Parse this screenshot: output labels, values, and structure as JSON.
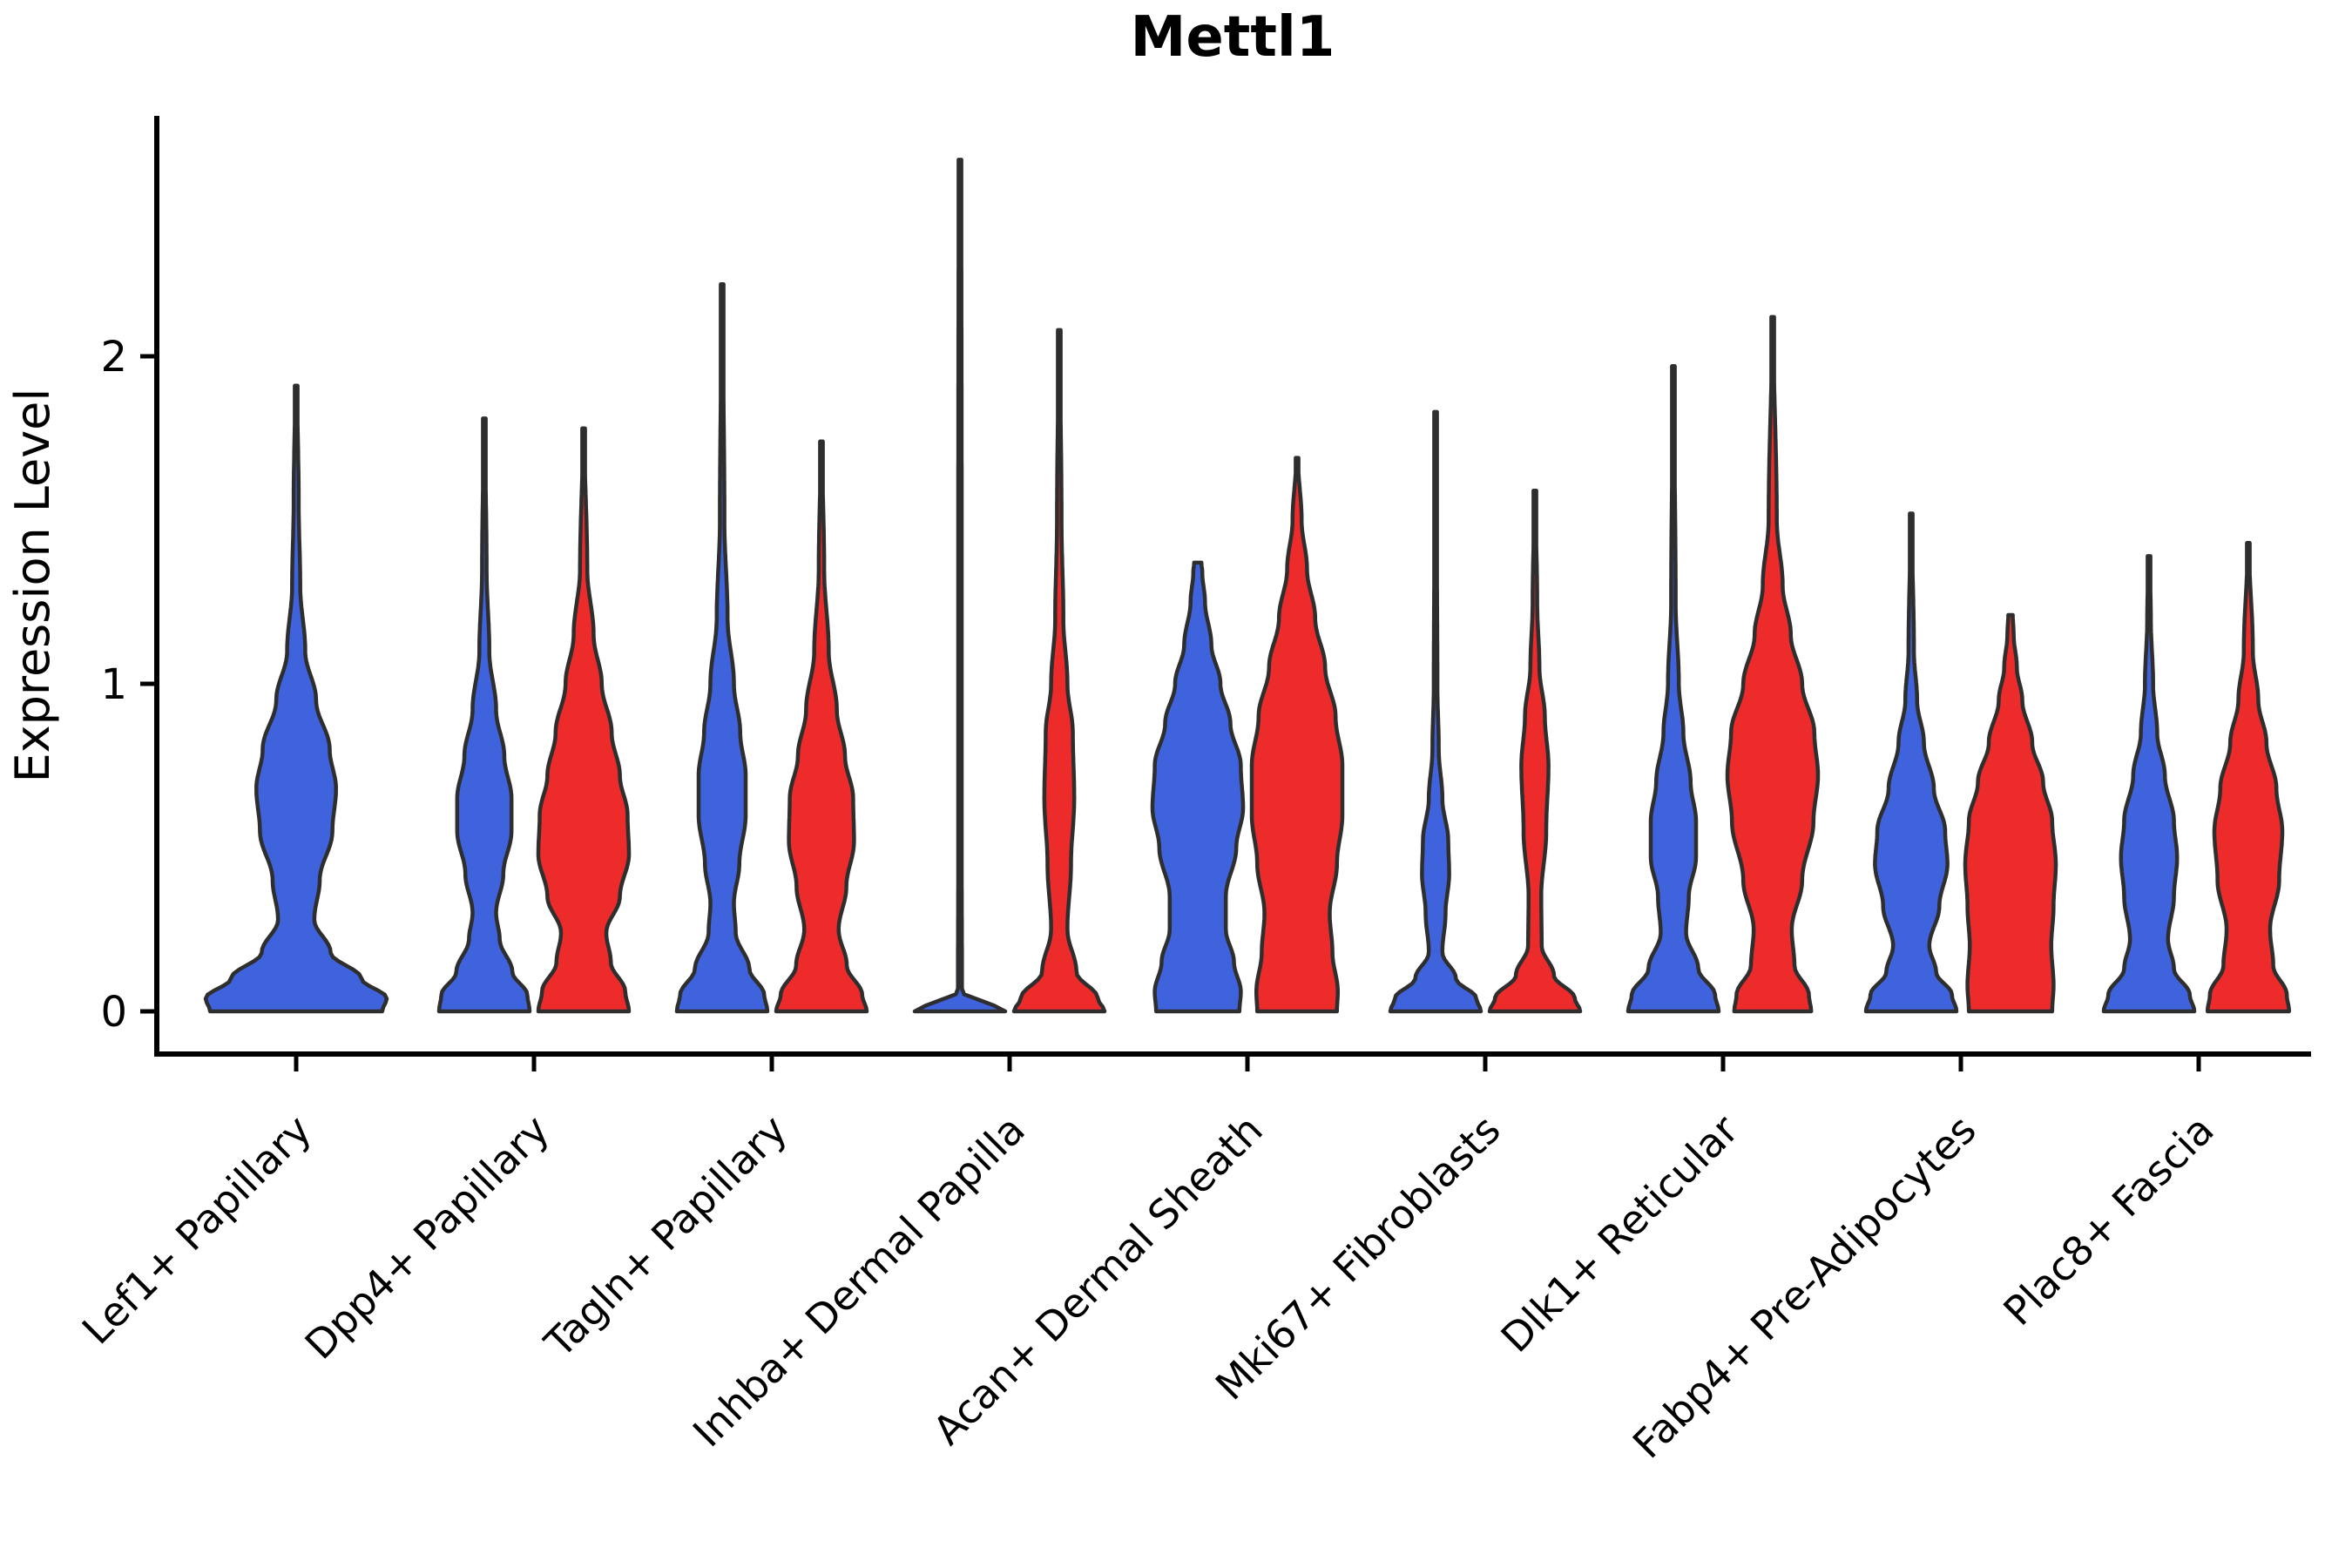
{
  "title": "Mettl1",
  "chart_data": {
    "type": "violin",
    "title": "Mettl1",
    "xlabel": "",
    "ylabel": "Expression Level",
    "ylim": [
      -0.13,
      2.73
    ],
    "yticks": [
      0,
      1,
      2
    ],
    "grid": false,
    "legend": "none",
    "categories": [
      "Lef1+ Papillary",
      "Dpp4+ Papillary",
      "Tagln+ Papillary",
      "Inhba+ Dermal Papilla",
      "Acan+ Dermal Sheath",
      "Mki67+ Fibroblasts",
      "Dlk1+ Reticular",
      "Fabp4+ Pre-Adipocytes",
      "Plac8+ Fascia"
    ],
    "series": [
      {
        "name": "blue",
        "color": "#3E63DC"
      },
      {
        "name": "red",
        "color": "#EE2B2B"
      }
    ],
    "outline_color": "#2E2E2E",
    "violins": [
      {
        "category_index": 0,
        "series": "blue",
        "solo": true,
        "max": 1.91,
        "profile": [
          [
            0,
            0.95
          ],
          [
            0.04,
            1.0
          ],
          [
            0.1,
            0.72
          ],
          [
            0.18,
            0.38
          ],
          [
            0.28,
            0.2
          ],
          [
            0.4,
            0.26
          ],
          [
            0.55,
            0.4
          ],
          [
            0.68,
            0.44
          ],
          [
            0.8,
            0.37
          ],
          [
            0.95,
            0.22
          ],
          [
            1.1,
            0.1
          ],
          [
            1.3,
            0.045
          ],
          [
            1.55,
            0.028
          ],
          [
            1.91,
            0.012
          ]
        ]
      },
      {
        "category_index": 1,
        "series": "blue",
        "solo": false,
        "max": 1.81,
        "profile": [
          [
            0,
            1.0
          ],
          [
            0.05,
            0.95
          ],
          [
            0.12,
            0.62
          ],
          [
            0.22,
            0.34
          ],
          [
            0.3,
            0.26
          ],
          [
            0.42,
            0.42
          ],
          [
            0.55,
            0.6
          ],
          [
            0.65,
            0.6
          ],
          [
            0.78,
            0.44
          ],
          [
            0.92,
            0.26
          ],
          [
            1.1,
            0.11
          ],
          [
            1.35,
            0.05
          ],
          [
            1.81,
            0.015
          ]
        ]
      },
      {
        "category_index": 1,
        "series": "red",
        "solo": false,
        "max": 1.78,
        "profile": [
          [
            0,
            1.0
          ],
          [
            0.06,
            0.92
          ],
          [
            0.15,
            0.6
          ],
          [
            0.24,
            0.5
          ],
          [
            0.35,
            0.8
          ],
          [
            0.48,
            1.0
          ],
          [
            0.6,
            0.97
          ],
          [
            0.72,
            0.8
          ],
          [
            0.85,
            0.62
          ],
          [
            1.0,
            0.4
          ],
          [
            1.15,
            0.22
          ],
          [
            1.35,
            0.08
          ],
          [
            1.78,
            0.015
          ]
        ]
      },
      {
        "category_index": 2,
        "series": "blue",
        "solo": false,
        "max": 2.22,
        "profile": [
          [
            0,
            1.0
          ],
          [
            0.05,
            0.93
          ],
          [
            0.13,
            0.6
          ],
          [
            0.24,
            0.3
          ],
          [
            0.33,
            0.26
          ],
          [
            0.45,
            0.38
          ],
          [
            0.6,
            0.52
          ],
          [
            0.72,
            0.52
          ],
          [
            0.85,
            0.4
          ],
          [
            1.0,
            0.26
          ],
          [
            1.2,
            0.12
          ],
          [
            1.5,
            0.05
          ],
          [
            2.22,
            0.012
          ]
        ]
      },
      {
        "category_index": 2,
        "series": "red",
        "solo": false,
        "max": 1.74,
        "profile": [
          [
            0,
            1.0
          ],
          [
            0.05,
            0.9
          ],
          [
            0.14,
            0.56
          ],
          [
            0.25,
            0.38
          ],
          [
            0.38,
            0.55
          ],
          [
            0.52,
            0.72
          ],
          [
            0.65,
            0.7
          ],
          [
            0.78,
            0.52
          ],
          [
            0.92,
            0.34
          ],
          [
            1.1,
            0.16
          ],
          [
            1.35,
            0.06
          ],
          [
            1.74,
            0.015
          ]
        ]
      },
      {
        "category_index": 3,
        "series": "blue",
        "solo": false,
        "max": 2.6,
        "profile": [
          [
            0,
            1.0
          ],
          [
            0.01,
            0.8
          ],
          [
            0.06,
            0.045
          ],
          [
            0.5,
            0.038
          ],
          [
            1.5,
            0.038
          ],
          [
            2.6,
            0.03
          ]
        ]
      },
      {
        "category_index": 3,
        "series": "red",
        "solo": false,
        "max": 2.08,
        "profile": [
          [
            0,
            1.0
          ],
          [
            0.04,
            0.85
          ],
          [
            0.12,
            0.38
          ],
          [
            0.25,
            0.18
          ],
          [
            0.45,
            0.26
          ],
          [
            0.65,
            0.33
          ],
          [
            0.85,
            0.3
          ],
          [
            1.0,
            0.18
          ],
          [
            1.2,
            0.09
          ],
          [
            1.5,
            0.05
          ],
          [
            2.08,
            0.015
          ]
        ]
      },
      {
        "category_index": 4,
        "series": "blue",
        "solo": false,
        "max": 1.37,
        "profile": [
          [
            0,
            0.92
          ],
          [
            0.06,
            0.95
          ],
          [
            0.15,
            0.8
          ],
          [
            0.25,
            0.62
          ],
          [
            0.35,
            0.62
          ],
          [
            0.5,
            0.85
          ],
          [
            0.62,
            1.0
          ],
          [
            0.75,
            0.95
          ],
          [
            0.88,
            0.72
          ],
          [
            1.0,
            0.5
          ],
          [
            1.12,
            0.3
          ],
          [
            1.25,
            0.16
          ],
          [
            1.34,
            0.1
          ],
          [
            1.37,
            0.08
          ]
        ]
      },
      {
        "category_index": 4,
        "series": "red",
        "solo": false,
        "max": 1.69,
        "profile": [
          [
            0,
            0.88
          ],
          [
            0.06,
            0.9
          ],
          [
            0.18,
            0.78
          ],
          [
            0.3,
            0.72
          ],
          [
            0.45,
            0.88
          ],
          [
            0.6,
            1.0
          ],
          [
            0.75,
            1.0
          ],
          [
            0.9,
            0.85
          ],
          [
            1.05,
            0.62
          ],
          [
            1.2,
            0.4
          ],
          [
            1.35,
            0.22
          ],
          [
            1.5,
            0.1
          ],
          [
            1.69,
            0.02
          ]
        ]
      },
      {
        "category_index": 5,
        "series": "blue",
        "solo": false,
        "max": 1.83,
        "profile": [
          [
            0,
            1.0
          ],
          [
            0.04,
            0.9
          ],
          [
            0.1,
            0.45
          ],
          [
            0.18,
            0.15
          ],
          [
            0.3,
            0.22
          ],
          [
            0.42,
            0.3
          ],
          [
            0.52,
            0.28
          ],
          [
            0.65,
            0.15
          ],
          [
            0.8,
            0.07
          ],
          [
            1.0,
            0.04
          ],
          [
            1.4,
            0.03
          ],
          [
            1.83,
            0.012
          ]
        ]
      },
      {
        "category_index": 5,
        "series": "red",
        "solo": false,
        "max": 1.59,
        "profile": [
          [
            0,
            1.0
          ],
          [
            0.04,
            0.88
          ],
          [
            0.11,
            0.42
          ],
          [
            0.2,
            0.15
          ],
          [
            0.35,
            0.14
          ],
          [
            0.55,
            0.25
          ],
          [
            0.75,
            0.3
          ],
          [
            0.9,
            0.22
          ],
          [
            1.05,
            0.1
          ],
          [
            1.25,
            0.05
          ],
          [
            1.59,
            0.012
          ]
        ]
      },
      {
        "category_index": 6,
        "series": "blue",
        "solo": false,
        "max": 1.97,
        "profile": [
          [
            0,
            1.0
          ],
          [
            0.05,
            0.92
          ],
          [
            0.13,
            0.55
          ],
          [
            0.24,
            0.28
          ],
          [
            0.35,
            0.34
          ],
          [
            0.47,
            0.5
          ],
          [
            0.58,
            0.5
          ],
          [
            0.7,
            0.38
          ],
          [
            0.85,
            0.22
          ],
          [
            1.0,
            0.12
          ],
          [
            1.25,
            0.05
          ],
          [
            1.97,
            0.012
          ]
        ]
      },
      {
        "category_index": 6,
        "series": "red",
        "solo": false,
        "max": 2.12,
        "profile": [
          [
            0,
            0.85
          ],
          [
            0.05,
            0.8
          ],
          [
            0.14,
            0.48
          ],
          [
            0.25,
            0.42
          ],
          [
            0.4,
            0.65
          ],
          [
            0.58,
            0.9
          ],
          [
            0.72,
            1.0
          ],
          [
            0.85,
            0.92
          ],
          [
            1.0,
            0.65
          ],
          [
            1.15,
            0.4
          ],
          [
            1.3,
            0.22
          ],
          [
            1.5,
            0.09
          ],
          [
            2.12,
            0.012
          ]
        ]
      },
      {
        "category_index": 7,
        "series": "blue",
        "solo": false,
        "max": 1.52,
        "profile": [
          [
            0,
            1.0
          ],
          [
            0.05,
            0.9
          ],
          [
            0.12,
            0.55
          ],
          [
            0.2,
            0.4
          ],
          [
            0.32,
            0.62
          ],
          [
            0.45,
            0.8
          ],
          [
            0.55,
            0.75
          ],
          [
            0.68,
            0.5
          ],
          [
            0.82,
            0.28
          ],
          [
            0.95,
            0.13
          ],
          [
            1.1,
            0.06
          ],
          [
            1.52,
            0.012
          ]
        ]
      },
      {
        "category_index": 7,
        "series": "red",
        "solo": false,
        "max": 1.21,
        "profile": [
          [
            0,
            0.92
          ],
          [
            0.08,
            0.95
          ],
          [
            0.2,
            0.9
          ],
          [
            0.32,
            0.95
          ],
          [
            0.45,
            1.0
          ],
          [
            0.58,
            0.92
          ],
          [
            0.7,
            0.72
          ],
          [
            0.82,
            0.48
          ],
          [
            0.95,
            0.26
          ],
          [
            1.05,
            0.14
          ],
          [
            1.15,
            0.07
          ],
          [
            1.21,
            0.05
          ]
        ]
      },
      {
        "category_index": 8,
        "series": "blue",
        "solo": false,
        "max": 1.39,
        "profile": [
          [
            0,
            1.0
          ],
          [
            0.05,
            0.9
          ],
          [
            0.13,
            0.55
          ],
          [
            0.22,
            0.42
          ],
          [
            0.35,
            0.55
          ],
          [
            0.47,
            0.62
          ],
          [
            0.58,
            0.55
          ],
          [
            0.72,
            0.35
          ],
          [
            0.85,
            0.18
          ],
          [
            1.0,
            0.09
          ],
          [
            1.2,
            0.04
          ],
          [
            1.39,
            0.015
          ]
        ]
      },
      {
        "category_index": 8,
        "series": "red",
        "solo": false,
        "max": 1.43,
        "profile": [
          [
            0,
            0.9
          ],
          [
            0.05,
            0.85
          ],
          [
            0.14,
            0.55
          ],
          [
            0.25,
            0.48
          ],
          [
            0.4,
            0.68
          ],
          [
            0.55,
            0.75
          ],
          [
            0.68,
            0.62
          ],
          [
            0.82,
            0.4
          ],
          [
            0.95,
            0.22
          ],
          [
            1.1,
            0.1
          ],
          [
            1.43,
            0.015
          ]
        ]
      }
    ]
  },
  "axes": {
    "y_tick_labels": [
      "0",
      "1",
      "2"
    ]
  }
}
